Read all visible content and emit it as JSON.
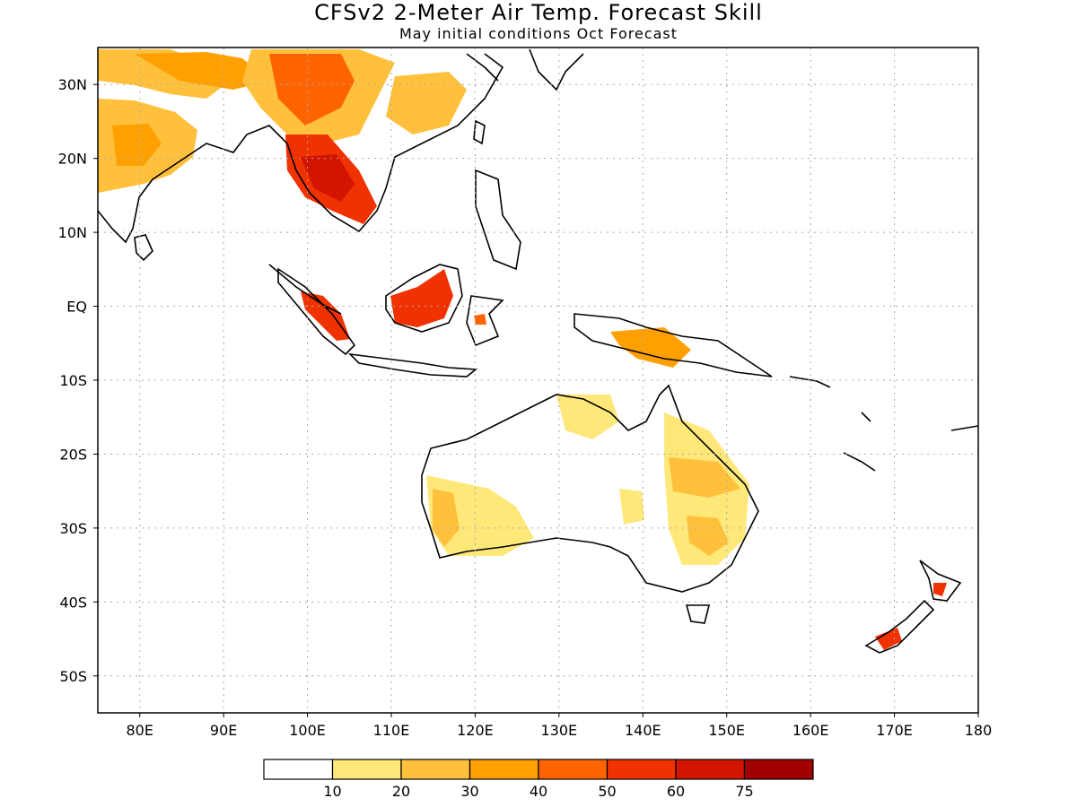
{
  "header": {
    "title": "CFSv2 2-Meter Air Temp. Forecast Skill",
    "subtitle": "May initial conditions  Oct Forecast"
  },
  "map": {
    "lon_range": [
      75,
      180
    ],
    "lat_range": [
      -55,
      35
    ],
    "lon_ticks": [
      "80E",
      "90E",
      "100E",
      "110E",
      "120E",
      "130E",
      "140E",
      "150E",
      "160E",
      "170E",
      "180"
    ],
    "lat_ticks": [
      "30N",
      "20N",
      "10N",
      "EQ",
      "10S",
      "20S",
      "30S",
      "40S",
      "50S"
    ],
    "grid": true
  },
  "colorbar": {
    "colors": [
      "#ffffff",
      "#ffe87a",
      "#ffc03c",
      "#ffa000",
      "#ff6400",
      "#f03200",
      "#d21400",
      "#a00000"
    ],
    "labels": [
      "10",
      "20",
      "30",
      "40",
      "50",
      "60",
      "75"
    ]
  }
}
